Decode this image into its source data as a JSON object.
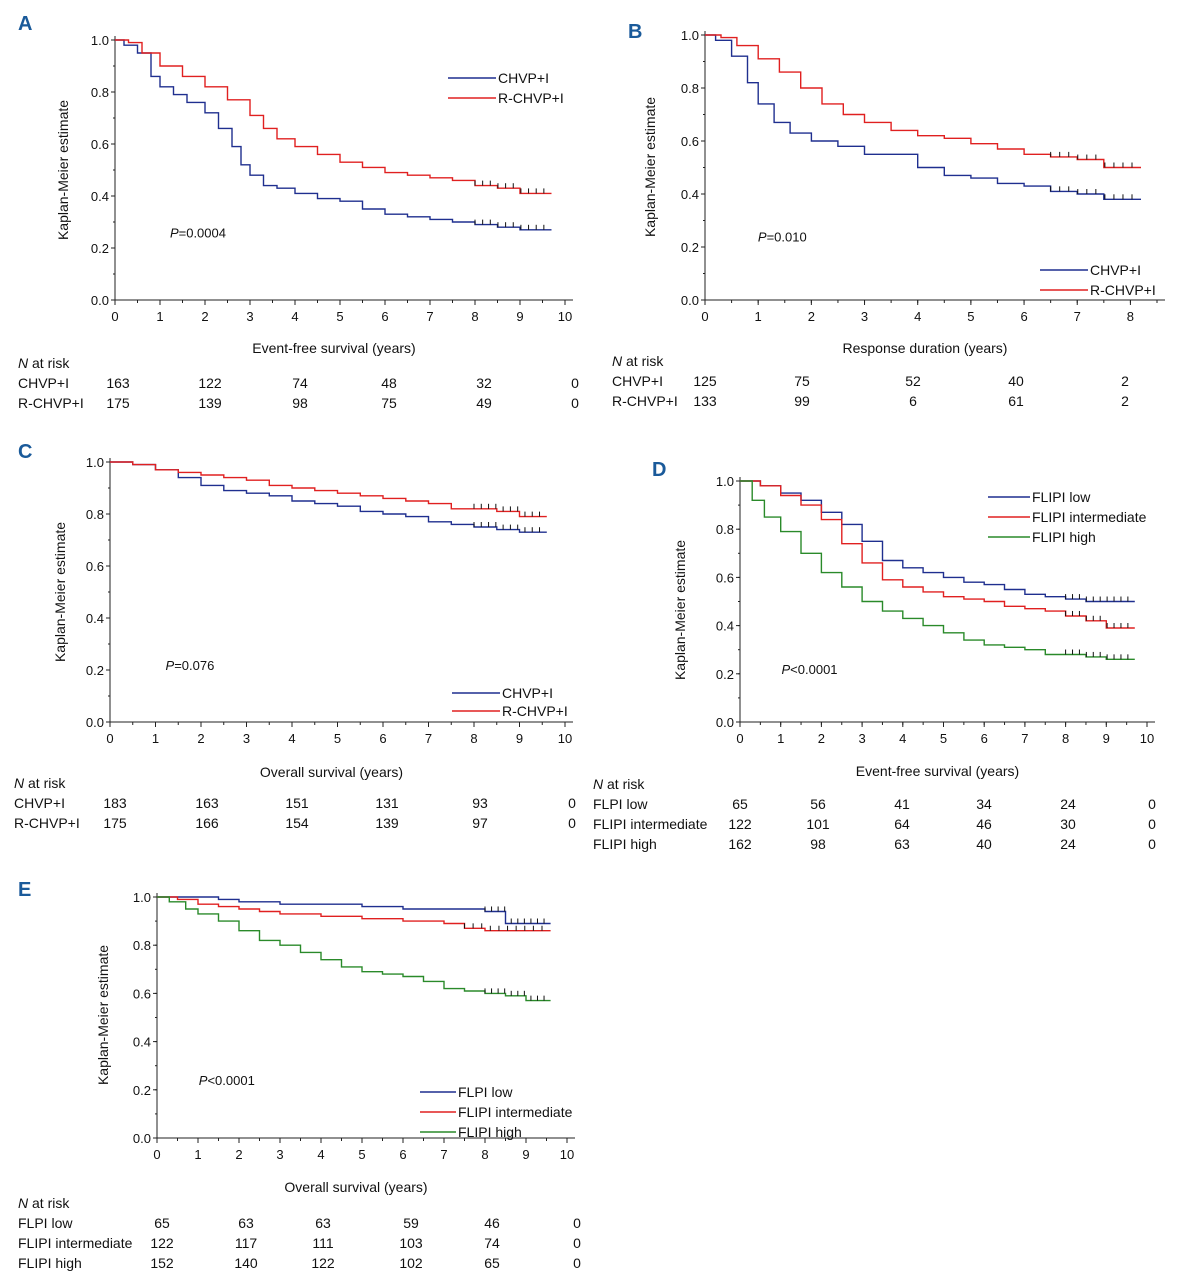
{
  "chart_data": [
    {
      "type": "line",
      "panel_label": "A",
      "xlabel": "Event-free survival (years)",
      "ylabel": "Kaplan-Meier estimate",
      "xlim": [
        0,
        10
      ],
      "ylim": [
        0,
        1
      ],
      "xticks": [
        "0",
        "1",
        "2",
        "3",
        "4",
        "5",
        "6",
        "7",
        "8",
        "9",
        "10"
      ],
      "yticks": [
        "0.0",
        "0.2",
        "0.4",
        "0.6",
        "0.8",
        "1.0"
      ],
      "p_prefix": "P",
      "p_value": "=0.0004",
      "series": [
        {
          "name": "CHVP+I",
          "color": "#1f2f8f",
          "x": [
            0,
            0.2,
            0.5,
            0.8,
            1.0,
            1.3,
            1.6,
            2.0,
            2.3,
            2.6,
            2.8,
            3.0,
            3.3,
            3.6,
            4.0,
            4.5,
            5.0,
            5.5,
            6.0,
            6.5,
            7.0,
            7.5,
            8.0,
            8.5,
            9.0,
            9.7
          ],
          "y": [
            1.0,
            0.98,
            0.95,
            0.86,
            0.82,
            0.79,
            0.76,
            0.72,
            0.66,
            0.59,
            0.52,
            0.48,
            0.44,
            0.43,
            0.41,
            0.39,
            0.38,
            0.35,
            0.33,
            0.32,
            0.31,
            0.3,
            0.29,
            0.28,
            0.27,
            0.27
          ]
        },
        {
          "name": "R-CHVP+I",
          "color": "#e02020",
          "x": [
            0,
            0.3,
            0.6,
            1.0,
            1.5,
            2.0,
            2.5,
            3.0,
            3.3,
            3.6,
            4.0,
            4.5,
            5.0,
            5.5,
            6.0,
            6.5,
            7.0,
            7.5,
            8.0,
            8.5,
            9.0,
            9.7
          ],
          "y": [
            1.0,
            0.99,
            0.95,
            0.9,
            0.86,
            0.82,
            0.77,
            0.71,
            0.66,
            0.62,
            0.59,
            0.56,
            0.53,
            0.51,
            0.49,
            0.48,
            0.47,
            0.46,
            0.44,
            0.43,
            0.41,
            0.41
          ]
        }
      ],
      "risk": {
        "header_italic": "N",
        "header": " at risk",
        "rows": [
          {
            "label": "CHVP+I",
            "values": [
              "163",
              "122",
              "74",
              "48",
              "32",
              "0"
            ]
          },
          {
            "label": "R-CHVP+I",
            "values": [
              "175",
              "139",
              "98",
              "75",
              "49",
              "0"
            ]
          }
        ]
      }
    },
    {
      "type": "line",
      "panel_label": "B",
      "xlabel": "Response duration (years)",
      "ylabel": "Kaplan-Meier estimate",
      "xlim": [
        0,
        8.5
      ],
      "ylim": [
        0,
        1
      ],
      "xticks": [
        "0",
        "1",
        "2",
        "3",
        "4",
        "5",
        "6",
        "7",
        "8"
      ],
      "yticks": [
        "0.0",
        "0.2",
        "0.4",
        "0.6",
        "0.8",
        "1.0"
      ],
      "p_prefix": "P",
      "p_value": "=0.010",
      "series": [
        {
          "name": "CHVP+I",
          "color": "#1f2f8f",
          "x": [
            0,
            0.2,
            0.5,
            0.8,
            1.0,
            1.3,
            1.6,
            2.0,
            2.5,
            3.0,
            3.5,
            4.0,
            4.5,
            5.0,
            5.5,
            6.0,
            6.5,
            7.0,
            7.5,
            8.2
          ],
          "y": [
            1.0,
            0.98,
            0.92,
            0.82,
            0.74,
            0.67,
            0.63,
            0.6,
            0.58,
            0.55,
            0.55,
            0.5,
            0.47,
            0.46,
            0.44,
            0.43,
            0.41,
            0.4,
            0.38,
            0.38
          ]
        },
        {
          "name": "R-CHVP+I",
          "color": "#e02020",
          "x": [
            0,
            0.3,
            0.6,
            1.0,
            1.4,
            1.8,
            2.2,
            2.6,
            3.0,
            3.5,
            4.0,
            4.5,
            5.0,
            5.5,
            6.0,
            6.5,
            7.0,
            7.5,
            8.2
          ],
          "y": [
            1.0,
            0.99,
            0.96,
            0.91,
            0.86,
            0.8,
            0.74,
            0.7,
            0.67,
            0.64,
            0.62,
            0.61,
            0.59,
            0.57,
            0.55,
            0.54,
            0.53,
            0.5,
            0.5
          ]
        }
      ],
      "risk": {
        "header_italic": "N",
        "header": " at risk",
        "rows": [
          {
            "label": "CHVP+I",
            "values": [
              "125",
              "75",
              "52",
              "40",
              "2"
            ]
          },
          {
            "label": "R-CHVP+I",
            "values": [
              "133",
              "99",
              "6",
              "61",
              "2"
            ]
          }
        ]
      }
    },
    {
      "type": "line",
      "panel_label": "C",
      "xlabel": "Overall survival (years)",
      "ylabel": "Kaplan-Meier estimate",
      "xlim": [
        0,
        10
      ],
      "ylim": [
        0,
        1
      ],
      "xticks": [
        "0",
        "1",
        "2",
        "3",
        "4",
        "5",
        "6",
        "7",
        "8",
        "9",
        "10"
      ],
      "yticks": [
        "0.0",
        "0.2",
        "0.4",
        "0.6",
        "0.8",
        "1.0"
      ],
      "p_prefix": "P",
      "p_value": "=0.076",
      "series": [
        {
          "name": "CHVP+I",
          "color": "#1f2f8f",
          "x": [
            0,
            0.5,
            1.0,
            1.5,
            2.0,
            2.5,
            3.0,
            3.5,
            4.0,
            4.5,
            5.0,
            5.5,
            6.0,
            6.5,
            7.0,
            7.5,
            8.0,
            8.5,
            9.0,
            9.6
          ],
          "y": [
            1.0,
            0.99,
            0.97,
            0.94,
            0.91,
            0.89,
            0.88,
            0.87,
            0.85,
            0.84,
            0.83,
            0.81,
            0.8,
            0.79,
            0.77,
            0.76,
            0.75,
            0.74,
            0.73,
            0.73
          ]
        },
        {
          "name": "R-CHVP+I",
          "color": "#e02020",
          "x": [
            0,
            0.5,
            1.0,
            1.5,
            2.0,
            2.5,
            3.0,
            3.5,
            4.0,
            4.5,
            5.0,
            5.5,
            6.0,
            6.5,
            7.0,
            7.5,
            8.0,
            8.5,
            9.0,
            9.6
          ],
          "y": [
            1.0,
            0.99,
            0.97,
            0.96,
            0.95,
            0.94,
            0.93,
            0.91,
            0.9,
            0.89,
            0.88,
            0.87,
            0.86,
            0.85,
            0.84,
            0.82,
            0.82,
            0.81,
            0.79,
            0.79
          ]
        }
      ],
      "risk": {
        "header_italic": "N",
        "header": " at risk",
        "rows": [
          {
            "label": "CHVP+I",
            "values": [
              "183",
              "163",
              "151",
              "131",
              "93",
              "0"
            ]
          },
          {
            "label": "R-CHVP+I",
            "values": [
              "175",
              "166",
              "154",
              "139",
              "97",
              "0"
            ]
          }
        ]
      }
    },
    {
      "type": "line",
      "panel_label": "D",
      "xlabel": "Event-free survival (years)",
      "ylabel": "Kaplan-Meier estimate",
      "xlim": [
        0,
        10
      ],
      "ylim": [
        0,
        1
      ],
      "xticks": [
        "0",
        "1",
        "2",
        "3",
        "4",
        "5",
        "6",
        "7",
        "8",
        "9",
        "10"
      ],
      "yticks": [
        "0.0",
        "0.2",
        "0.4",
        "0.6",
        "0.8",
        "1.0"
      ],
      "p_prefix": "P",
      "p_value": "<0.0001",
      "series": [
        {
          "name": "FLIPI low",
          "color": "#1f2f8f",
          "x": [
            0,
            0.5,
            1.0,
            1.5,
            2.0,
            2.5,
            3.0,
            3.5,
            4.0,
            4.5,
            5.0,
            5.5,
            6.0,
            6.5,
            7.0,
            7.5,
            8.0,
            8.5,
            9.0,
            9.7
          ],
          "y": [
            1.0,
            0.98,
            0.95,
            0.92,
            0.87,
            0.82,
            0.75,
            0.67,
            0.64,
            0.62,
            0.6,
            0.58,
            0.57,
            0.55,
            0.53,
            0.52,
            0.51,
            0.5,
            0.5,
            0.5
          ]
        },
        {
          "name": "FLIPI intermediate",
          "color": "#e02020",
          "x": [
            0,
            0.5,
            1.0,
            1.5,
            2.0,
            2.5,
            3.0,
            3.5,
            4.0,
            4.5,
            5.0,
            5.5,
            6.0,
            6.5,
            7.0,
            7.5,
            8.0,
            8.5,
            9.0,
            9.7
          ],
          "y": [
            1.0,
            0.98,
            0.94,
            0.9,
            0.84,
            0.74,
            0.66,
            0.59,
            0.56,
            0.54,
            0.52,
            0.51,
            0.5,
            0.48,
            0.47,
            0.46,
            0.44,
            0.42,
            0.39,
            0.39
          ]
        },
        {
          "name": "FLIPI high",
          "color": "#2a8a2a",
          "x": [
            0,
            0.3,
            0.6,
            1.0,
            1.5,
            2.0,
            2.5,
            3.0,
            3.5,
            4.0,
            4.5,
            5.0,
            5.5,
            6.0,
            6.5,
            7.0,
            7.5,
            8.0,
            8.5,
            9.0,
            9.7
          ],
          "y": [
            1.0,
            0.92,
            0.85,
            0.79,
            0.7,
            0.62,
            0.56,
            0.5,
            0.46,
            0.43,
            0.4,
            0.37,
            0.34,
            0.32,
            0.31,
            0.3,
            0.28,
            0.28,
            0.27,
            0.26,
            0.26
          ]
        }
      ],
      "risk": {
        "header_italic": "N",
        "header": " at risk",
        "rows": [
          {
            "label": "FLPI low",
            "values": [
              "65",
              "56",
              "41",
              "34",
              "24",
              "0"
            ]
          },
          {
            "label": "FLIPI intermediate",
            "values": [
              "122",
              "101",
              "64",
              "46",
              "30",
              "0"
            ]
          },
          {
            "label": "FLIPI high",
            "values": [
              "162",
              "98",
              "63",
              "40",
              "24",
              "0"
            ]
          }
        ]
      }
    },
    {
      "type": "line",
      "panel_label": "E",
      "xlabel": "Overall survival (years)",
      "ylabel": "Kaplan-Meier estimate",
      "xlim": [
        0,
        10
      ],
      "ylim": [
        0,
        1
      ],
      "xticks": [
        "0",
        "1",
        "2",
        "3",
        "4",
        "5",
        "6",
        "7",
        "8",
        "9",
        "10"
      ],
      "yticks": [
        "0.0",
        "0.2",
        "0.4",
        "0.6",
        "0.8",
        "1.0"
      ],
      "p_prefix": "P",
      "p_value": "<0.0001",
      "series": [
        {
          "name": "FLPI low",
          "color": "#1f2f8f",
          "x": [
            0,
            1.0,
            1.5,
            2.0,
            3.0,
            4.0,
            5.0,
            6.0,
            7.0,
            8.0,
            8.5,
            9.0,
            9.6
          ],
          "y": [
            1.0,
            1.0,
            0.99,
            0.98,
            0.97,
            0.97,
            0.96,
            0.95,
            0.95,
            0.94,
            0.89,
            0.89,
            0.89
          ]
        },
        {
          "name": "FLIPI intermediate",
          "color": "#e02020",
          "x": [
            0,
            0.5,
            1.0,
            1.5,
            2.0,
            2.5,
            3.0,
            4.0,
            5.0,
            6.0,
            7.0,
            7.5,
            8.0,
            9.0,
            9.6
          ],
          "y": [
            1.0,
            0.99,
            0.97,
            0.96,
            0.95,
            0.94,
            0.93,
            0.92,
            0.91,
            0.9,
            0.89,
            0.87,
            0.86,
            0.86,
            0.86
          ]
        },
        {
          "name": "FLIPI high",
          "color": "#2a8a2a",
          "x": [
            0,
            0.3,
            0.7,
            1.0,
            1.5,
            2.0,
            2.5,
            3.0,
            3.5,
            4.0,
            4.5,
            5.0,
            5.5,
            6.0,
            6.5,
            7.0,
            7.5,
            8.0,
            8.5,
            9.0,
            9.6
          ],
          "y": [
            1.0,
            0.98,
            0.95,
            0.93,
            0.9,
            0.86,
            0.82,
            0.8,
            0.77,
            0.74,
            0.71,
            0.69,
            0.68,
            0.67,
            0.65,
            0.62,
            0.61,
            0.6,
            0.59,
            0.57,
            0.57
          ]
        }
      ],
      "risk": {
        "header_italic": "N",
        "header": " at risk",
        "rows": [
          {
            "label": "FLPI low",
            "values": [
              "65",
              "63",
              "63",
              "59",
              "46",
              "0"
            ]
          },
          {
            "label": "FLIPI intermediate",
            "values": [
              "122",
              "117",
              "111",
              "103",
              "74",
              "0"
            ]
          },
          {
            "label": "FLIPI high",
            "values": [
              "152",
              "140",
              "122",
              "102",
              "65",
              "0"
            ]
          }
        ]
      }
    }
  ]
}
